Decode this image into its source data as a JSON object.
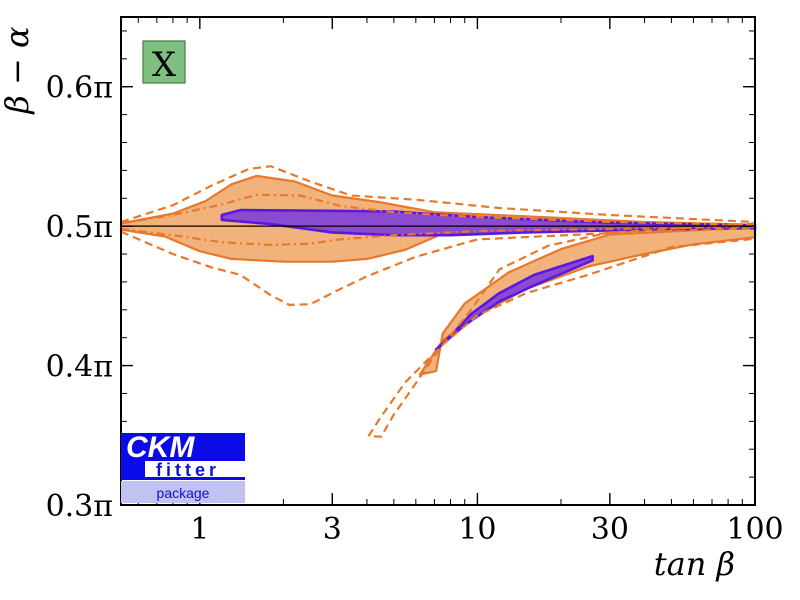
{
  "chart_data": {
    "type": "area",
    "xlabel": "tan β",
    "ylabel": "β − α",
    "x_scale": "log",
    "xlim": [
      0.52,
      100
    ],
    "ylim": [
      0.3,
      0.65
    ],
    "y_unit": "π",
    "x_ticks": [
      {
        "value": 1,
        "label": "1"
      },
      {
        "value": 3,
        "label": "3"
      },
      {
        "value": 10,
        "label": "10"
      },
      {
        "value": 30,
        "label": "30"
      },
      {
        "value": 100,
        "label": "100"
      }
    ],
    "y_ticks": [
      {
        "value": 0.3,
        "label": "0.3π"
      },
      {
        "value": 0.4,
        "label": "0.4π"
      },
      {
        "value": 0.5,
        "label": "0.5π"
      },
      {
        "value": 0.6,
        "label": "0.6π"
      }
    ],
    "badge": "X",
    "logo": {
      "title": "CKM",
      "middle": "fitter",
      "bottom": "package"
    },
    "colors": {
      "orange_fill": "#f2b27c",
      "orange_line": "#e8782a",
      "purple_fill": "#8a4bd1",
      "purple_line": "#5a18e0",
      "badge_fill": "#7fbf7f",
      "logo_blue": "#0b0bea",
      "logo_light": "#c2c2f2"
    },
    "regions": [
      {
        "name": "orange-upper-band",
        "style": "filled",
        "points": [
          [
            0.52,
            0.502
          ],
          [
            0.8,
            0.509
          ],
          [
            1.05,
            0.518
          ],
          [
            1.3,
            0.53
          ],
          [
            1.6,
            0.536
          ],
          [
            2.2,
            0.532
          ],
          [
            3.0,
            0.522
          ],
          [
            4.5,
            0.517
          ],
          [
            7,
            0.51
          ],
          [
            15,
            0.507
          ],
          [
            40,
            0.503
          ],
          [
            100,
            0.501
          ],
          [
            100,
            0.497
          ],
          [
            60,
            0.498
          ],
          [
            30,
            0.4985
          ],
          [
            15,
            0.4985
          ],
          [
            8,
            0.497
          ],
          [
            5.5,
            0.483
          ],
          [
            4,
            0.4765
          ],
          [
            3,
            0.4745
          ],
          [
            2,
            0.4745
          ],
          [
            1.3,
            0.4765
          ],
          [
            1.0,
            0.482
          ],
          [
            0.75,
            0.4925
          ],
          [
            0.52,
            0.4975
          ]
        ]
      },
      {
        "name": "orange-lower-band",
        "style": "filled",
        "points": [
          [
            6.2,
            0.3935
          ],
          [
            7.5,
            0.418
          ],
          [
            10,
            0.436
          ],
          [
            15,
            0.455
          ],
          [
            25,
            0.471
          ],
          [
            40,
            0.48
          ],
          [
            60,
            0.487
          ],
          [
            100,
            0.492
          ],
          [
            100,
            0.5
          ],
          [
            60,
            0.497
          ],
          [
            30,
            0.494
          ],
          [
            20,
            0.4835
          ],
          [
            13,
            0.467
          ],
          [
            9,
            0.4445
          ],
          [
            7.5,
            0.423
          ],
          [
            7.1,
            0.396
          ]
        ]
      },
      {
        "name": "purple-upper-band",
        "style": "filled",
        "points": [
          [
            1.2,
            0.508
          ],
          [
            1.4,
            0.5115
          ],
          [
            3,
            0.511
          ],
          [
            5,
            0.5105
          ],
          [
            10,
            0.5065
          ],
          [
            30,
            0.5025
          ],
          [
            100,
            0.5005
          ],
          [
            100,
            0.4985
          ],
          [
            40,
            0.4975
          ],
          [
            15,
            0.4955
          ],
          [
            8,
            0.4935
          ],
          [
            5,
            0.4935
          ],
          [
            3,
            0.4955
          ],
          [
            1.8,
            0.5015
          ],
          [
            1.2,
            0.5045
          ]
        ]
      },
      {
        "name": "purple-lower-band",
        "style": "filled",
        "points": [
          [
            7.1,
            0.4115
          ],
          [
            9,
            0.429
          ],
          [
            12,
            0.446
          ],
          [
            16,
            0.4575
          ],
          [
            26,
            0.4755
          ],
          [
            26,
            0.4785
          ],
          [
            16,
            0.465
          ],
          [
            12,
            0.452
          ],
          [
            9.5,
            0.437
          ],
          [
            7.7,
            0.418
          ]
        ]
      },
      {
        "name": "dash-outer-upper",
        "style": "dashed",
        "points": [
          [
            0.52,
            0.503
          ],
          [
            0.8,
            0.515
          ],
          [
            1.1,
            0.529
          ],
          [
            1.5,
            0.541
          ],
          [
            1.8,
            0.543
          ],
          [
            2.5,
            0.532
          ],
          [
            3.5,
            0.522
          ],
          [
            6,
            0.519
          ],
          [
            12,
            0.513
          ],
          [
            30,
            0.508
          ],
          [
            100,
            0.503
          ]
        ]
      },
      {
        "name": "dash-outer-lower",
        "style": "dashed",
        "points": [
          [
            0.52,
            0.496
          ],
          [
            0.8,
            0.48
          ],
          [
            1.1,
            0.4705
          ],
          [
            1.4,
            0.465
          ],
          [
            1.8,
            0.4505
          ],
          [
            2.1,
            0.4435
          ],
          [
            2.5,
            0.444
          ],
          [
            3.1,
            0.4535
          ],
          [
            4,
            0.464
          ],
          [
            6,
            0.478
          ],
          [
            10,
            0.4905
          ],
          [
            30,
            0.495
          ],
          [
            100,
            0.4985
          ]
        ]
      },
      {
        "name": "dash-lower-loop",
        "style": "dashed",
        "points": [
          [
            4.05,
            0.3495
          ],
          [
            4.5,
            0.3635
          ],
          [
            5.5,
            0.388
          ],
          [
            7.5,
            0.415
          ],
          [
            10,
            0.436
          ],
          [
            15,
            0.452
          ],
          [
            25,
            0.465
          ],
          [
            50,
            0.485
          ],
          [
            100,
            0.491
          ],
          [
            100,
            0.502
          ],
          [
            60,
            0.499
          ],
          [
            30,
            0.4955
          ],
          [
            18,
            0.486
          ],
          [
            12,
            0.469
          ],
          [
            9.5,
            0.44
          ],
          [
            7.3,
            0.412
          ],
          [
            5.8,
            0.383
          ],
          [
            5,
            0.365
          ],
          [
            4.5,
            0.349
          ],
          [
            4.05,
            0.3495
          ]
        ]
      },
      {
        "name": "dashdot-inner-upper",
        "style": "dashdot",
        "points": [
          [
            0.52,
            0.502
          ],
          [
            0.8,
            0.508
          ],
          [
            1.2,
            0.5155
          ],
          [
            1.6,
            0.5225
          ],
          [
            2.3,
            0.522
          ],
          [
            3.2,
            0.5145
          ],
          [
            5,
            0.51
          ],
          [
            10,
            0.5065
          ],
          [
            30,
            0.503
          ],
          [
            100,
            0.501
          ]
        ]
      },
      {
        "name": "dashdot-inner-lower",
        "style": "dashdot",
        "points": [
          [
            0.52,
            0.498
          ],
          [
            0.8,
            0.4935
          ],
          [
            1.2,
            0.4885
          ],
          [
            1.8,
            0.4865
          ],
          [
            2.5,
            0.4875
          ],
          [
            3.2,
            0.4905
          ],
          [
            5,
            0.4935
          ],
          [
            10,
            0.4965
          ],
          [
            30,
            0.498
          ],
          [
            100,
            0.4995
          ]
        ]
      }
    ]
  }
}
